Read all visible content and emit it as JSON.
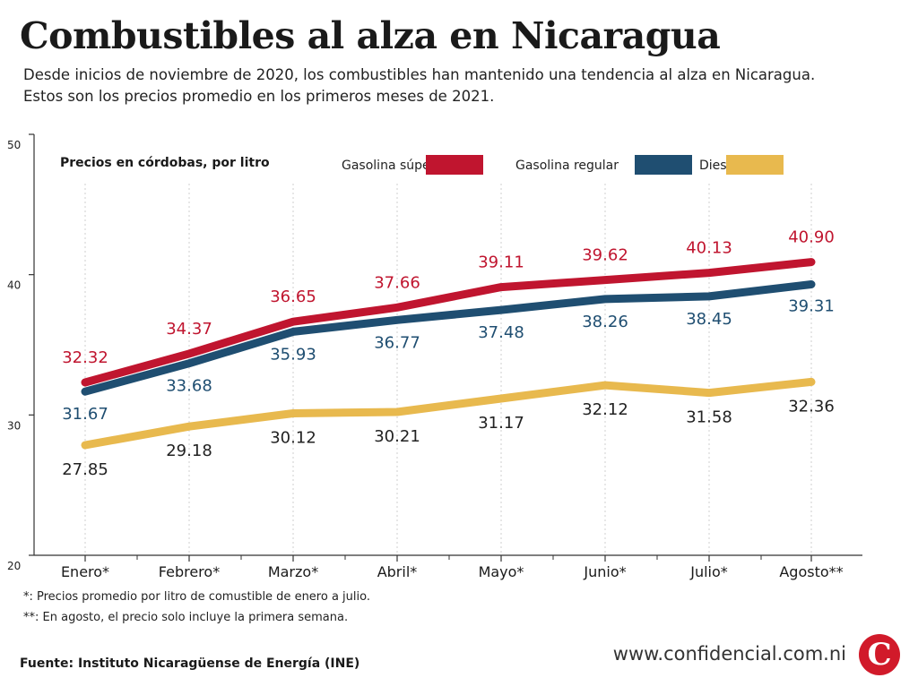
{
  "title": "Combustibles al alza en Nicaragua",
  "subtitle_line1": "Desde inicios de noviembre de 2020, los combustibles han mantenido una tendencia al alza en Nicaragua.",
  "subtitle_line2": "Estos son los precios promedio en los primeros meses de 2021.",
  "footnote1": "*: Precios promedio por litro de comustible de enero a julio.",
  "footnote2": "**: En agosto, el precio solo incluye la primera semana.",
  "source": "Fuente: Instituto Nicaragüense de Energía (INE)",
  "website": "www.confidencial.com.ni",
  "logo_letter": "C",
  "chart_data": {
    "type": "line",
    "title": "Precios en córdobas, por litro",
    "categories": [
      "Enero*",
      "Febrero*",
      "Marzo*",
      "Abril*",
      "Mayo*",
      "Junio*",
      "Julio*",
      "Agosto**"
    ],
    "y_ticks": [
      20,
      30,
      40,
      50
    ],
    "ylim": [
      20,
      50
    ],
    "legend_position": "top-right",
    "series": [
      {
        "name": "Gasolina súper",
        "color": "#c0152f",
        "values": [
          32.32,
          34.37,
          36.65,
          37.66,
          39.11,
          39.62,
          40.13,
          40.9
        ],
        "labels": [
          "32.32",
          "34.37",
          "36.65",
          "37.66",
          "39.11",
          "39.62",
          "40.13",
          "40.90"
        ]
      },
      {
        "name": "Gasolina regular",
        "color": "#1f4e71",
        "values": [
          31.67,
          33.68,
          35.93,
          36.77,
          37.48,
          38.26,
          38.45,
          39.31
        ],
        "labels": [
          "31.67",
          "33.68",
          "35.93",
          "36.77",
          "37.48",
          "38.26",
          "38.45",
          "39.31"
        ]
      },
      {
        "name": "Diesel",
        "color": "#e8b94e",
        "label_color": "#222222",
        "values": [
          27.85,
          29.18,
          30.12,
          30.21,
          31.17,
          32.12,
          31.58,
          32.36
        ],
        "labels": [
          "27.85",
          "29.18",
          "30.12",
          "30.21",
          "31.17",
          "32.12",
          "31.58",
          "32.36"
        ]
      }
    ]
  }
}
